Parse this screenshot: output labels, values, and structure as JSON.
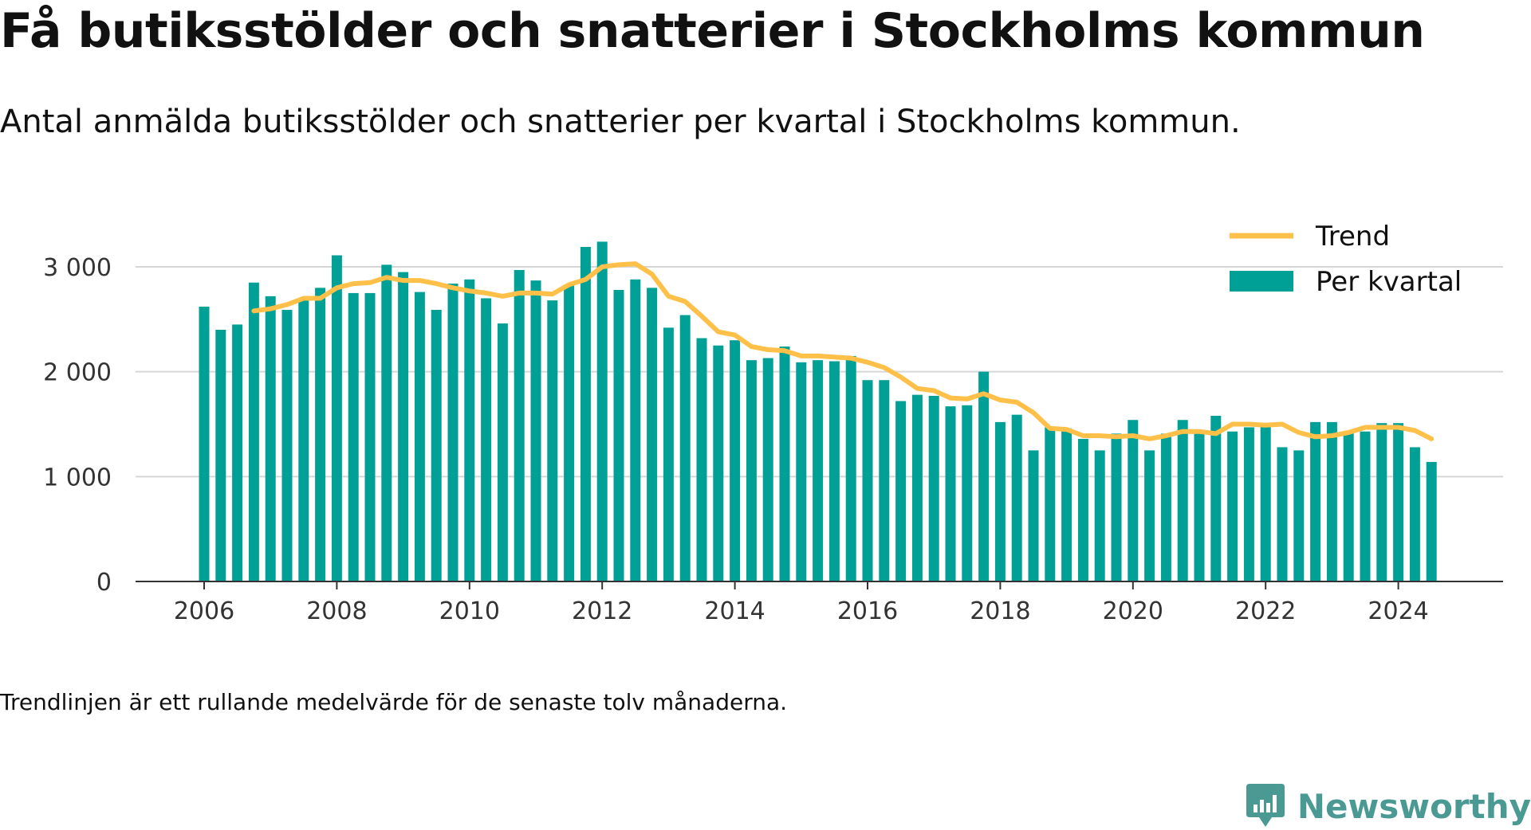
{
  "title": "Få butiksstölder och snatterier i Stockholms kommun",
  "subtitle": "Antal anmälda butiksstölder och snatterier per kvartal i Stockholms kommun.",
  "footnote": "Trendlinjen är ett rullande medelvärde för de senaste tolv månaderna.",
  "brand": {
    "name": "Newsworthy",
    "color": "#4a9a93",
    "icon": "newsworthy-logo-icon"
  },
  "chart_data": {
    "type": "bar",
    "title": "Få butiksstölder och snatterier i Stockholms kommun",
    "xlabel": "",
    "ylabel": "",
    "ylim": [
      0,
      3100
    ],
    "y_ticks": [
      0,
      1000,
      2000,
      3000
    ],
    "y_tick_labels": [
      "0",
      "1 000",
      "2 000",
      "3 000"
    ],
    "x_ticks": [
      "2006",
      "2008",
      "2010",
      "2012",
      "2014",
      "2016",
      "2018",
      "2020",
      "2022",
      "2024"
    ],
    "grid": true,
    "legend_position": "top-right",
    "colors": {
      "bars": "#00a096",
      "trend": "#ffc04a",
      "grid": "#d6d6d6",
      "axis": "#333333"
    },
    "categories": [
      "2006 Q1",
      "2006 Q2",
      "2006 Q3",
      "2006 Q4",
      "2007 Q1",
      "2007 Q2",
      "2007 Q3",
      "2007 Q4",
      "2008 Q1",
      "2008 Q2",
      "2008 Q3",
      "2008 Q4",
      "2009 Q1",
      "2009 Q2",
      "2009 Q3",
      "2009 Q4",
      "2010 Q1",
      "2010 Q2",
      "2010 Q3",
      "2010 Q4",
      "2011 Q1",
      "2011 Q2",
      "2011 Q3",
      "2011 Q4",
      "2012 Q1",
      "2012 Q2",
      "2012 Q3",
      "2012 Q4",
      "2013 Q1",
      "2013 Q2",
      "2013 Q3",
      "2013 Q4",
      "2014 Q1",
      "2014 Q2",
      "2014 Q3",
      "2014 Q4",
      "2015 Q1",
      "2015 Q2",
      "2015 Q3",
      "2015 Q4",
      "2016 Q1",
      "2016 Q2",
      "2016 Q3",
      "2016 Q4",
      "2017 Q1",
      "2017 Q2",
      "2017 Q3",
      "2017 Q4",
      "2018 Q1",
      "2018 Q2",
      "2018 Q3",
      "2018 Q4",
      "2019 Q1",
      "2019 Q2",
      "2019 Q3",
      "2019 Q4",
      "2020 Q1",
      "2020 Q2",
      "2020 Q3",
      "2020 Q4",
      "2021 Q1",
      "2021 Q2",
      "2021 Q3",
      "2021 Q4",
      "2022 Q1",
      "2022 Q2",
      "2022 Q3",
      "2022 Q4",
      "2023 Q1",
      "2023 Q2",
      "2023 Q3",
      "2023 Q4",
      "2024 Q1",
      "2024 Q2",
      "2024 Q3"
    ],
    "series": [
      {
        "name": "Per kvartal",
        "type": "bar",
        "values": [
          2620,
          2400,
          2450,
          2850,
          2720,
          2590,
          2700,
          2800,
          3110,
          2750,
          2750,
          3020,
          2950,
          2760,
          2590,
          2840,
          2880,
          2700,
          2460,
          2970,
          2870,
          2680,
          2830,
          3190,
          3240,
          2780,
          2880,
          2800,
          2420,
          2540,
          2320,
          2250,
          2300,
          2110,
          2130,
          2240,
          2090,
          2110,
          2100,
          2150,
          1920,
          1920,
          1720,
          1780,
          1770,
          1670,
          1680,
          2000,
          1520,
          1590,
          1250,
          1470,
          1460,
          1360,
          1250,
          1410,
          1540,
          1250,
          1410,
          1540,
          1410,
          1580,
          1430,
          1470,
          1500,
          1280,
          1250,
          1520,
          1520,
          1420,
          1430,
          1510,
          1510,
          1280,
          1140
        ]
      },
      {
        "name": "Trend",
        "type": "line",
        "values": [
          null,
          null,
          null,
          2580,
          2600,
          2640,
          2700,
          2700,
          2800,
          2840,
          2850,
          2900,
          2870,
          2870,
          2840,
          2800,
          2770,
          2750,
          2720,
          2750,
          2750,
          2740,
          2830,
          2880,
          3000,
          3020,
          3030,
          2930,
          2720,
          2670,
          2530,
          2380,
          2350,
          2240,
          2210,
          2200,
          2150,
          2150,
          2140,
          2130,
          2090,
          2040,
          1950,
          1840,
          1820,
          1750,
          1740,
          1790,
          1730,
          1710,
          1610,
          1460,
          1450,
          1390,
          1390,
          1380,
          1390,
          1360,
          1390,
          1430,
          1430,
          1410,
          1500,
          1500,
          1490,
          1500,
          1420,
          1380,
          1390,
          1420,
          1470,
          1470,
          1470,
          1440,
          1360
        ]
      }
    ]
  }
}
